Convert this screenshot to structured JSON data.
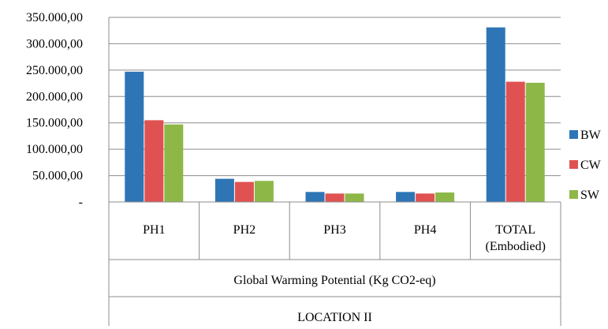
{
  "chart_data": {
    "type": "bar",
    "ylim": [
      0,
      350000
    ],
    "yticks": [
      {
        "value": 350000,
        "label": "350.000,00"
      },
      {
        "value": 300000,
        "label": "300.000,00"
      },
      {
        "value": 250000,
        "label": "250.000,00"
      },
      {
        "value": 200000,
        "label": "200.000,00"
      },
      {
        "value": 150000,
        "label": "150.000,00"
      },
      {
        "value": 100000,
        "label": "100.000,00"
      },
      {
        "value": 50000,
        "label": "50.000,00"
      },
      {
        "value": 0,
        "label": "-"
      }
    ],
    "categories": [
      [
        "PH1"
      ],
      [
        "PH2"
      ],
      [
        "PH3"
      ],
      [
        "PH4"
      ],
      [
        "TOTAL",
        "(Embodied)"
      ]
    ],
    "series": [
      {
        "name": "BW",
        "color": "#2e75b6",
        "values": [
          247000,
          44000,
          19000,
          19000,
          331000
        ]
      },
      {
        "name": "CW",
        "color": "#e05252",
        "values": [
          155000,
          38000,
          16000,
          16000,
          228000
        ]
      },
      {
        "name": "SW",
        "color": "#8db848",
        "values": [
          147000,
          40000,
          16000,
          18000,
          226000
        ]
      }
    ],
    "group_labels": [
      "Global Warming Potential (Kg CO2-eq)",
      "LOCATION II"
    ],
    "grid": true,
    "legend_position": "right"
  }
}
